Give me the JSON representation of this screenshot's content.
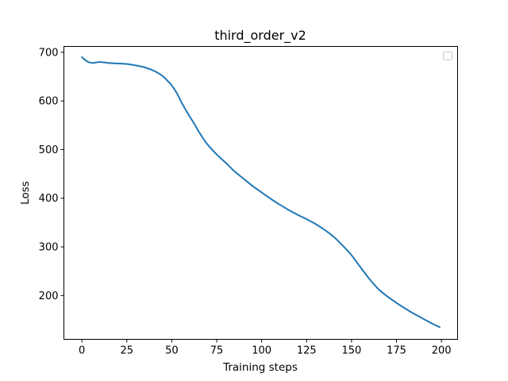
{
  "chart_data": {
    "type": "line",
    "title": "third_order_v2",
    "xlabel": "Training steps",
    "ylabel": "Loss",
    "xlim": [
      -10,
      209
    ],
    "ylim": [
      110,
      712
    ],
    "x_ticks": [
      0,
      25,
      50,
      75,
      100,
      125,
      150,
      175,
      200
    ],
    "y_ticks": [
      200,
      300,
      400,
      500,
      600,
      700
    ],
    "grid": false,
    "legend": {
      "placement": "top-right",
      "entries": []
    },
    "series": [
      {
        "color": "#1f77b4",
        "x": [
          0,
          3,
          6,
          10,
          15,
          20,
          25,
          30,
          35,
          40,
          45,
          48,
          50,
          53,
          55,
          58,
          60,
          63,
          65,
          68,
          70,
          75,
          80,
          85,
          90,
          95,
          100,
          105,
          110,
          115,
          120,
          125,
          130,
          135,
          140,
          145,
          150,
          155,
          160,
          165,
          170,
          175,
          180,
          185,
          190,
          195,
          199
        ],
        "y": [
          690,
          681,
          678,
          680,
          678,
          677,
          676,
          673,
          669,
          662,
          651,
          640,
          632,
          615,
          600,
          580,
          568,
          550,
          537,
          520,
          510,
          490,
          473,
          455,
          440,
          425,
          412,
          399,
          387,
          376,
          366,
          357,
          347,
          335,
          321,
          303,
          283,
          258,
          234,
          213,
          198,
          185,
          173,
          162,
          152,
          142,
          135
        ]
      }
    ]
  }
}
